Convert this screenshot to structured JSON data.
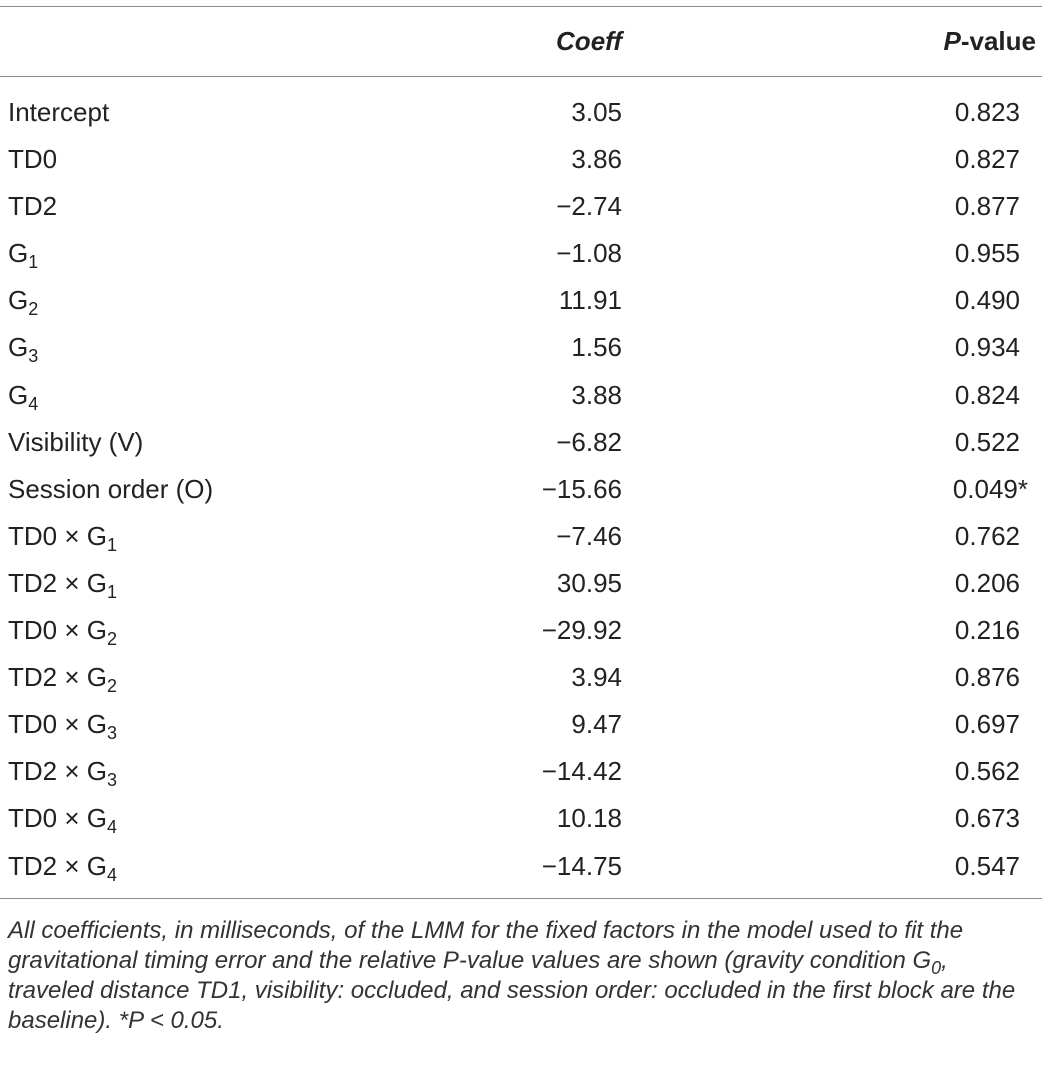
{
  "table": {
    "headers": {
      "term": "",
      "coeff": "Coeff",
      "p_value_italic": "P",
      "p_value_rest": "-value"
    },
    "rows": [
      {
        "term": "Intercept",
        "sub": "",
        "coeff": "3.05",
        "p": "0.823"
      },
      {
        "term": "TD0",
        "sub": "",
        "coeff": "3.86",
        "p": "0.827"
      },
      {
        "term": "TD2",
        "sub": "",
        "coeff": "−2.74",
        "p": "0.877"
      },
      {
        "term": "G",
        "sub": "1",
        "coeff": "−1.08",
        "p": "0.955"
      },
      {
        "term": "G",
        "sub": "2",
        "coeff": "11.91",
        "p": "0.490"
      },
      {
        "term": "G",
        "sub": "3",
        "coeff": "1.56",
        "p": "0.934"
      },
      {
        "term": "G",
        "sub": "4",
        "coeff": "3.88",
        "p": "0.824"
      },
      {
        "term": "Visibility (V)",
        "sub": "",
        "coeff": "−6.82",
        "p": "0.522"
      },
      {
        "term": "Session order (O)",
        "sub": "",
        "coeff": "−15.66",
        "p": "0.049*"
      },
      {
        "term": "TD0 × G",
        "sub": "1",
        "coeff": "−7.46",
        "p": "0.762"
      },
      {
        "term": "TD2 × G",
        "sub": "1",
        "coeff": "30.95",
        "p": "0.206"
      },
      {
        "term": "TD0 × G",
        "sub": "2",
        "coeff": "−29.92",
        "p": "0.216"
      },
      {
        "term": "TD2 × G",
        "sub": "2",
        "coeff": "3.94",
        "p": "0.876"
      },
      {
        "term": "TD0 × G",
        "sub": "3",
        "coeff": "9.47",
        "p": "0.697"
      },
      {
        "term": "TD2 × G",
        "sub": "3",
        "coeff": "−14.42",
        "p": "0.562"
      },
      {
        "term": "TD0 × G",
        "sub": "4",
        "coeff": "10.18",
        "p": "0.673"
      },
      {
        "term": "TD2 × G",
        "sub": "4",
        "coeff": "−14.75",
        "p": "0.547"
      }
    ]
  },
  "caption": {
    "part1": "All coefficients, in milliseconds, of the LMM for the fixed factors in the model used to fit the gravitational timing error and the relative P-value values are shown (gravity condition G",
    "sub1": "0",
    "part2": ", traveled distance TD1, visibility: occluded, and session order: occluded in the first block are the baseline). *P < 0.05."
  }
}
